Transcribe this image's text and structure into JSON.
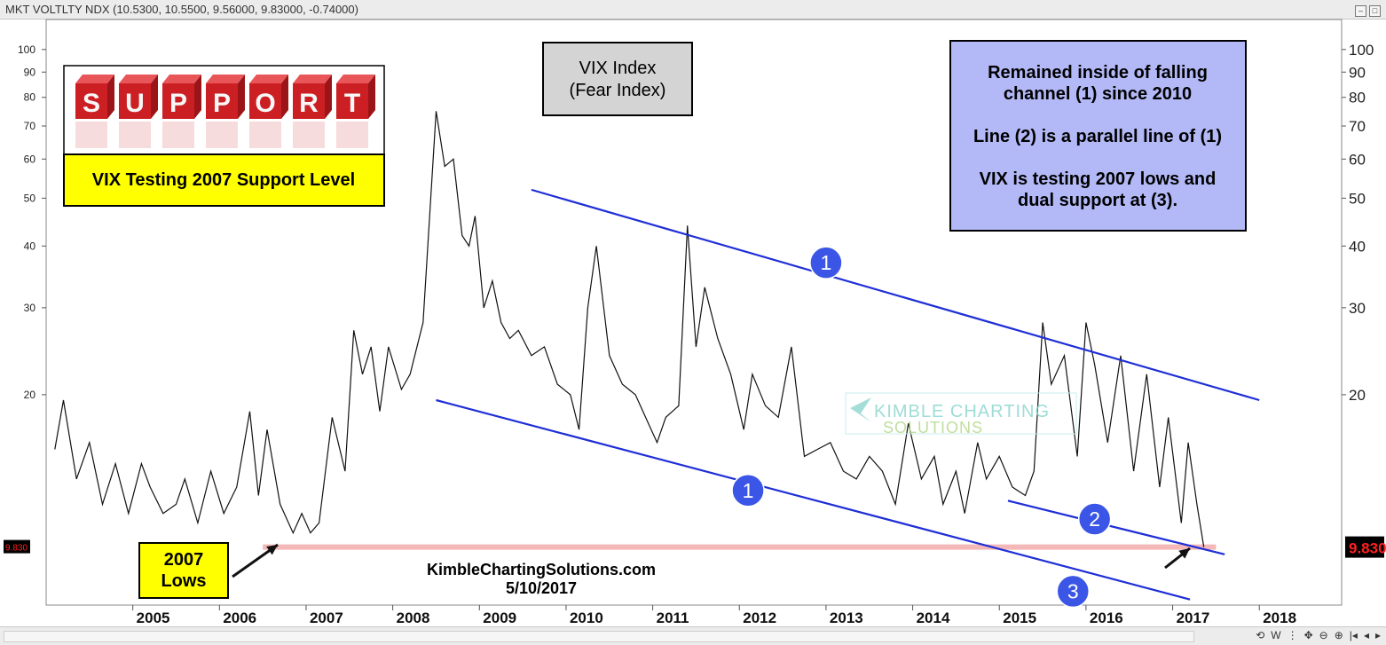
{
  "window": {
    "title": "MKT VOLTLTY NDX (10.5300, 10.5500, 9.56000, 9.83000, -0.74000)"
  },
  "price_label": "9.830",
  "price_label_right": "9.830",
  "chart_data": {
    "type": "line",
    "scale": "log",
    "ylim": [
      7.5,
      115
    ],
    "y_ticks_left": [
      100,
      90,
      80,
      70,
      60,
      50,
      40,
      30,
      20
    ],
    "y_ticks_right": [
      100,
      90,
      80,
      70,
      60,
      50,
      40,
      30,
      20
    ],
    "x_ticks": [
      "2005",
      "2006",
      "2007",
      "2008",
      "2009",
      "2010",
      "2011",
      "2012",
      "2013",
      "2014",
      "2015",
      "2016",
      "2017",
      "2018"
    ],
    "series": [
      {
        "x": [
          2004.1,
          2004.2,
          2004.35,
          2004.5,
          2004.65,
          2004.8,
          2004.95,
          2005.1,
          2005.2,
          2005.35,
          2005.5,
          2005.6,
          2005.75,
          2005.9,
          2006.05,
          2006.2,
          2006.35,
          2006.45,
          2006.55,
          2006.7,
          2006.85,
          2006.95,
          2007.05,
          2007.15,
          2007.3,
          2007.45,
          2007.55,
          2007.65,
          2007.75,
          2007.85,
          2007.95,
          2008.1,
          2008.2,
          2008.35,
          2008.5,
          2008.6,
          2008.7,
          2008.8,
          2008.88,
          2008.95,
          2009.05,
          2009.15,
          2009.25,
          2009.35,
          2009.45,
          2009.6,
          2009.75,
          2009.9,
          2010.05,
          2010.15,
          2010.25,
          2010.35,
          2010.5,
          2010.65,
          2010.8,
          2010.95,
          2011.05,
          2011.15,
          2011.3,
          2011.4,
          2011.5,
          2011.6,
          2011.75,
          2011.9,
          2012.05,
          2012.15,
          2012.3,
          2012.45,
          2012.6,
          2012.75,
          2012.9,
          2013.05,
          2013.2,
          2013.35,
          2013.5,
          2013.65,
          2013.8,
          2013.95,
          2014.1,
          2014.25,
          2014.35,
          2014.5,
          2014.6,
          2014.75,
          2014.85,
          2015.0,
          2015.15,
          2015.3,
          2015.4,
          2015.5,
          2015.6,
          2015.75,
          2015.9,
          2016.0,
          2016.1,
          2016.25,
          2016.4,
          2016.55,
          2016.7,
          2016.85,
          2016.95,
          2017.1,
          2017.18,
          2017.28,
          2017.36
        ],
        "y": [
          15.5,
          19.5,
          13.5,
          16,
          12,
          14.5,
          11.5,
          14.5,
          13,
          11.5,
          12,
          13.5,
          11,
          14,
          11.5,
          13,
          18.5,
          12.5,
          17,
          12,
          10.5,
          11.5,
          10.5,
          11,
          18,
          14,
          27,
          22,
          25,
          18.5,
          25,
          20.5,
          22,
          28,
          75,
          58,
          60,
          42,
          40,
          46,
          30,
          34,
          28,
          26,
          27,
          24,
          25,
          21,
          20,
          17,
          30,
          40,
          24,
          21,
          20,
          17.5,
          16,
          18,
          19,
          44,
          25,
          33,
          26,
          22,
          17,
          22,
          19,
          18,
          25,
          15,
          15.5,
          16,
          14,
          13.5,
          15,
          14,
          12,
          17.5,
          13.5,
          15,
          12,
          14,
          11.5,
          16,
          13.5,
          15,
          13,
          12.5,
          14,
          28,
          21,
          24,
          15,
          28,
          23,
          16,
          24,
          14,
          22,
          13,
          18,
          11,
          16,
          12,
          9.83
        ]
      }
    ],
    "lines": [
      {
        "label": "1",
        "x": [
          2009.6,
          2018.0
        ],
        "y": [
          52,
          19.5
        ]
      },
      {
        "label": "1",
        "x": [
          2008.5,
          2017.2
        ],
        "y": [
          19.5,
          7.7
        ]
      },
      {
        "label": "2",
        "x": [
          2015.1,
          2017.6
        ],
        "y": [
          12.2,
          9.5
        ]
      },
      {
        "label": "support",
        "x": [
          2006.5,
          2017.5
        ],
        "y": [
          9.83,
          9.83
        ]
      }
    ],
    "markers": [
      {
        "label": "1",
        "x": 2013.0,
        "y": 37
      },
      {
        "label": "1",
        "x": 2012.1,
        "y": 12.8
      },
      {
        "label": "2",
        "x": 2016.1,
        "y": 11.2
      },
      {
        "label": "3",
        "x": 2015.85,
        "y": 8.0
      }
    ]
  },
  "annotations": {
    "support_title": "VIX Testing 2007 Support Level",
    "support_letters": [
      "S",
      "U",
      "P",
      "P",
      "O",
      "R",
      "T"
    ],
    "vix_label_line1": "VIX Index",
    "vix_label_line2": "(Fear Index)",
    "note_line1": "Remained inside of falling",
    "note_line2": "channel (1) since 2010",
    "note_line3": "Line (2) is a parallel line of (1)",
    "note_line4": "VIX is testing 2007 lows and",
    "note_line5": "dual support at (3).",
    "lows_line1": "2007",
    "lows_line2": "Lows",
    "site": "KimbleChartingSolutions.com",
    "date": "5/10/2017",
    "watermark_line1": "KIMBLE CHARTING",
    "watermark_line2": "SOLUTIONS"
  },
  "colors": {
    "channel": "#1f2fd6",
    "marker": "#3b56e6",
    "support": "#f4b8b8",
    "note_bg": "#b3b9f7",
    "yellow": "#ffff00",
    "gray_box": "#d4d4d4",
    "cube_red": "#cc1f23"
  },
  "bottom_tools": [
    "⟲",
    "W",
    "⋮",
    "✥",
    "⊖",
    "⊕",
    "|◂",
    "◂",
    "▸"
  ]
}
